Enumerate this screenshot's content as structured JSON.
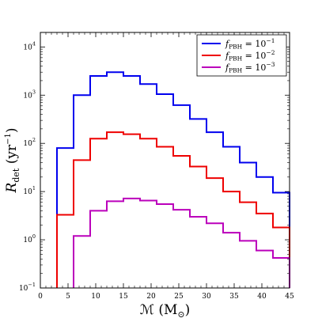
{
  "chart_data": {
    "type": "line",
    "step": true,
    "x_bin_edges": [
      3,
      6,
      9,
      12,
      15,
      18,
      21,
      24,
      27,
      30,
      33,
      36,
      39,
      42,
      45
    ],
    "series": [
      {
        "name": "f_PBH = 10^-1",
        "legend_label": {
          "base": "f",
          "sub": "PBH",
          "mid": " = 10",
          "sup": "−1"
        },
        "color": "#0000ee",
        "values": [
          80,
          1000,
          2500,
          3000,
          2500,
          1700,
          1050,
          620,
          320,
          170,
          85,
          40,
          20,
          9.5
        ]
      },
      {
        "name": "f_PBH = 10^-2",
        "legend_label": {
          "base": "f",
          "sub": "PBH",
          "mid": " = 10",
          "sup": "−2"
        },
        "color": "#ee0000",
        "values": [
          3.3,
          45,
          125,
          170,
          155,
          125,
          85,
          55,
          33,
          19,
          10,
          6,
          3.5,
          1.8
        ]
      },
      {
        "name": "f_PBH = 10^-3",
        "legend_label": {
          "base": "f",
          "sub": "PBH",
          "mid": " = 10",
          "sup": "−3"
        },
        "color": "#bb00bb",
        "values": [
          null,
          1.2,
          4,
          6.3,
          7.2,
          6.5,
          5.5,
          4.2,
          3,
          2.2,
          1.4,
          0.95,
          0.6,
          0.42
        ]
      }
    ],
    "xlim": [
      0,
      45
    ],
    "ylim": [
      0.1,
      20000
    ],
    "yscale": "log",
    "x_ticks": [
      "0",
      "5",
      "10",
      "15",
      "20",
      "25",
      "30",
      "35",
      "40",
      "45"
    ],
    "y_ticks": [
      {
        "base": "10",
        "exp": "−1",
        "value": 0.1
      },
      {
        "base": "10",
        "exp": "0",
        "value": 1
      },
      {
        "base": "10",
        "exp": "1",
        "value": 10
      },
      {
        "base": "10",
        "exp": "2",
        "value": 100
      },
      {
        "base": "10",
        "exp": "3",
        "value": 1000
      },
      {
        "base": "10",
        "exp": "4",
        "value": 10000
      }
    ],
    "xlabel": {
      "main": "ℳ (M",
      "sub": "⊙",
      "end": ")"
    },
    "ylabel": {
      "main": "R",
      "sub": "det",
      "mid": " (yr",
      "sup": "−1",
      "end": ")"
    },
    "legend_position": "top-right",
    "grid": false
  }
}
